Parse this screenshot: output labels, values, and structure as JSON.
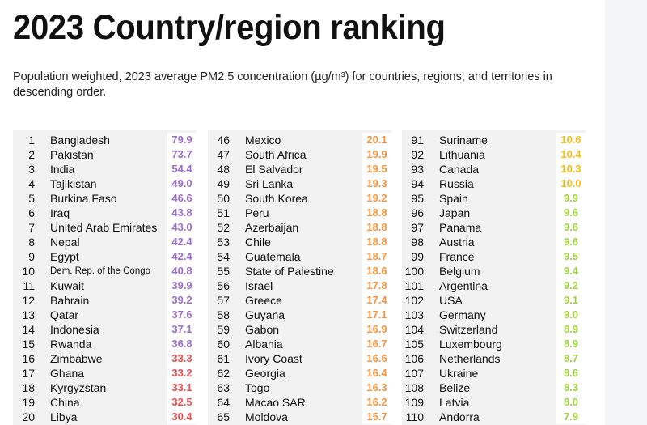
{
  "title": "2023 Country/region ranking",
  "subtitle": "Population weighted, 2023 average PM2.5 concentration (µg/m³) for countries, regions, and territories in descending order.",
  "colors": {
    "purple": "#9b6dc7",
    "red": "#e94f4f",
    "orange": "#f5923e",
    "yellow": "#f2c014",
    "lime": "#9fd23a"
  },
  "columns": [
    [
      {
        "rank": "1",
        "name": "Bangladesh",
        "value": "79.9",
        "color": "purple"
      },
      {
        "rank": "2",
        "name": "Pakistan",
        "value": "73.7",
        "color": "purple"
      },
      {
        "rank": "3",
        "name": "India",
        "value": "54.4",
        "color": "purple"
      },
      {
        "rank": "4",
        "name": "Tajikistan",
        "value": "49.0",
        "color": "purple"
      },
      {
        "rank": "5",
        "name": "Burkina Faso",
        "value": "46.6",
        "color": "purple"
      },
      {
        "rank": "6",
        "name": "Iraq",
        "value": "43.8",
        "color": "purple"
      },
      {
        "rank": "7",
        "name": "United Arab Emirates",
        "value": "43.0",
        "color": "purple"
      },
      {
        "rank": "8",
        "name": "Nepal",
        "value": "42.4",
        "color": "purple"
      },
      {
        "rank": "9",
        "name": "Egypt",
        "value": "42.4",
        "color": "purple"
      },
      {
        "rank": "10",
        "name": "Dem. Rep. of the Congo",
        "value": "40.8",
        "color": "purple",
        "small": true
      },
      {
        "rank": "11",
        "name": "Kuwait",
        "value": "39.9",
        "color": "purple"
      },
      {
        "rank": "12",
        "name": "Bahrain",
        "value": "39.2",
        "color": "purple"
      },
      {
        "rank": "13",
        "name": "Qatar",
        "value": "37.6",
        "color": "purple"
      },
      {
        "rank": "14",
        "name": "Indonesia",
        "value": "37.1",
        "color": "purple"
      },
      {
        "rank": "15",
        "name": "Rwanda",
        "value": "36.8",
        "color": "purple"
      },
      {
        "rank": "16",
        "name": "Zimbabwe",
        "value": "33.3",
        "color": "red"
      },
      {
        "rank": "17",
        "name": "Ghana",
        "value": "33.2",
        "color": "red"
      },
      {
        "rank": "18",
        "name": "Kyrgyzstan",
        "value": "33.1",
        "color": "red"
      },
      {
        "rank": "19",
        "name": "China",
        "value": "32.5",
        "color": "red"
      },
      {
        "rank": "20",
        "name": "Libya",
        "value": "30.4",
        "color": "red"
      }
    ],
    [
      {
        "rank": "46",
        "name": "Mexico",
        "value": "20.1",
        "color": "orange"
      },
      {
        "rank": "47",
        "name": "South Africa",
        "value": "19.9",
        "color": "orange"
      },
      {
        "rank": "48",
        "name": "El Salvador",
        "value": "19.5",
        "color": "orange"
      },
      {
        "rank": "49",
        "name": "Sri Lanka",
        "value": "19.3",
        "color": "orange"
      },
      {
        "rank": "50",
        "name": "South Korea",
        "value": "19.2",
        "color": "orange"
      },
      {
        "rank": "51",
        "name": "Peru",
        "value": "18.8",
        "color": "orange"
      },
      {
        "rank": "52",
        "name": "Azerbaijan",
        "value": "18.8",
        "color": "orange"
      },
      {
        "rank": "53",
        "name": "Chile",
        "value": "18.8",
        "color": "orange"
      },
      {
        "rank": "54",
        "name": "Guatemala",
        "value": "18.7",
        "color": "orange"
      },
      {
        "rank": "55",
        "name": "State of Palestine",
        "value": "18.6",
        "color": "orange"
      },
      {
        "rank": "56",
        "name": "Israel",
        "value": "17.8",
        "color": "orange"
      },
      {
        "rank": "57",
        "name": "Greece",
        "value": "17.4",
        "color": "orange"
      },
      {
        "rank": "58",
        "name": "Guyana",
        "value": "17.1",
        "color": "orange"
      },
      {
        "rank": "59",
        "name": "Gabon",
        "value": "16.9",
        "color": "orange"
      },
      {
        "rank": "60",
        "name": "Albania",
        "value": "16.7",
        "color": "orange"
      },
      {
        "rank": "61",
        "name": "Ivory Coast",
        "value": "16.6",
        "color": "orange"
      },
      {
        "rank": "62",
        "name": "Georgia",
        "value": "16.4",
        "color": "orange"
      },
      {
        "rank": "63",
        "name": "Togo",
        "value": "16.3",
        "color": "orange"
      },
      {
        "rank": "64",
        "name": "Macao SAR",
        "value": "16.2",
        "color": "orange"
      },
      {
        "rank": "65",
        "name": "Moldova",
        "value": "15.7",
        "color": "orange"
      }
    ],
    [
      {
        "rank": "91",
        "name": "Suriname",
        "value": "10.6",
        "color": "yellow"
      },
      {
        "rank": "92",
        "name": "Lithuania",
        "value": "10.4",
        "color": "yellow"
      },
      {
        "rank": "93",
        "name": "Canada",
        "value": "10.3",
        "color": "yellow"
      },
      {
        "rank": "94",
        "name": "Russia",
        "value": "10.0",
        "color": "yellow"
      },
      {
        "rank": "95",
        "name": "Spain",
        "value": "9.9",
        "color": "lime"
      },
      {
        "rank": "96",
        "name": "Japan",
        "value": "9.6",
        "color": "lime"
      },
      {
        "rank": "97",
        "name": "Panama",
        "value": "9.6",
        "color": "lime"
      },
      {
        "rank": "98",
        "name": "Austria",
        "value": "9.6",
        "color": "lime"
      },
      {
        "rank": "99",
        "name": "France",
        "value": "9.5",
        "color": "lime"
      },
      {
        "rank": "100",
        "name": "Belgium",
        "value": "9.4",
        "color": "lime"
      },
      {
        "rank": "101",
        "name": "Argentina",
        "value": "9.2",
        "color": "lime"
      },
      {
        "rank": "102",
        "name": "USA",
        "value": "9.1",
        "color": "lime"
      },
      {
        "rank": "103",
        "name": "Germany",
        "value": "9.0",
        "color": "lime"
      },
      {
        "rank": "104",
        "name": "Switzerland",
        "value": "8.9",
        "color": "lime"
      },
      {
        "rank": "105",
        "name": "Luxembourg",
        "value": "8.9",
        "color": "lime"
      },
      {
        "rank": "106",
        "name": "Netherlands",
        "value": "8.7",
        "color": "lime"
      },
      {
        "rank": "107",
        "name": "Ukraine",
        "value": "8.6",
        "color": "lime"
      },
      {
        "rank": "108",
        "name": "Belize",
        "value": "8.3",
        "color": "lime"
      },
      {
        "rank": "109",
        "name": "Latvia",
        "value": "8.0",
        "color": "lime"
      },
      {
        "rank": "110",
        "name": "Andorra",
        "value": "7.9",
        "color": "lime"
      }
    ]
  ]
}
